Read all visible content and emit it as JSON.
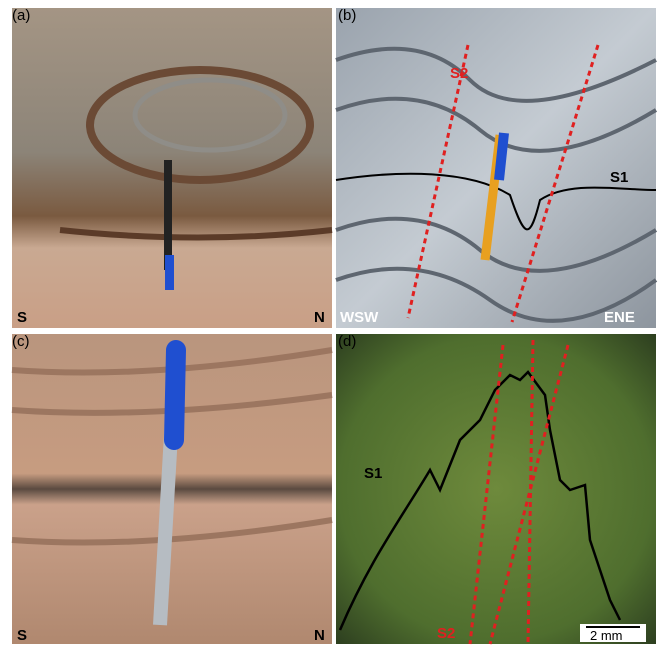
{
  "panels": [
    {
      "label": "(a)",
      "texts": [
        "S",
        "N"
      ]
    },
    {
      "label": "(b)",
      "texts": [
        "S2",
        "S1",
        "WSW",
        "ENE"
      ]
    },
    {
      "label": "(c)",
      "texts": [
        "S",
        "N"
      ]
    },
    {
      "label": "(d)",
      "texts": [
        "S1",
        "S2",
        "2 mm"
      ]
    }
  ]
}
